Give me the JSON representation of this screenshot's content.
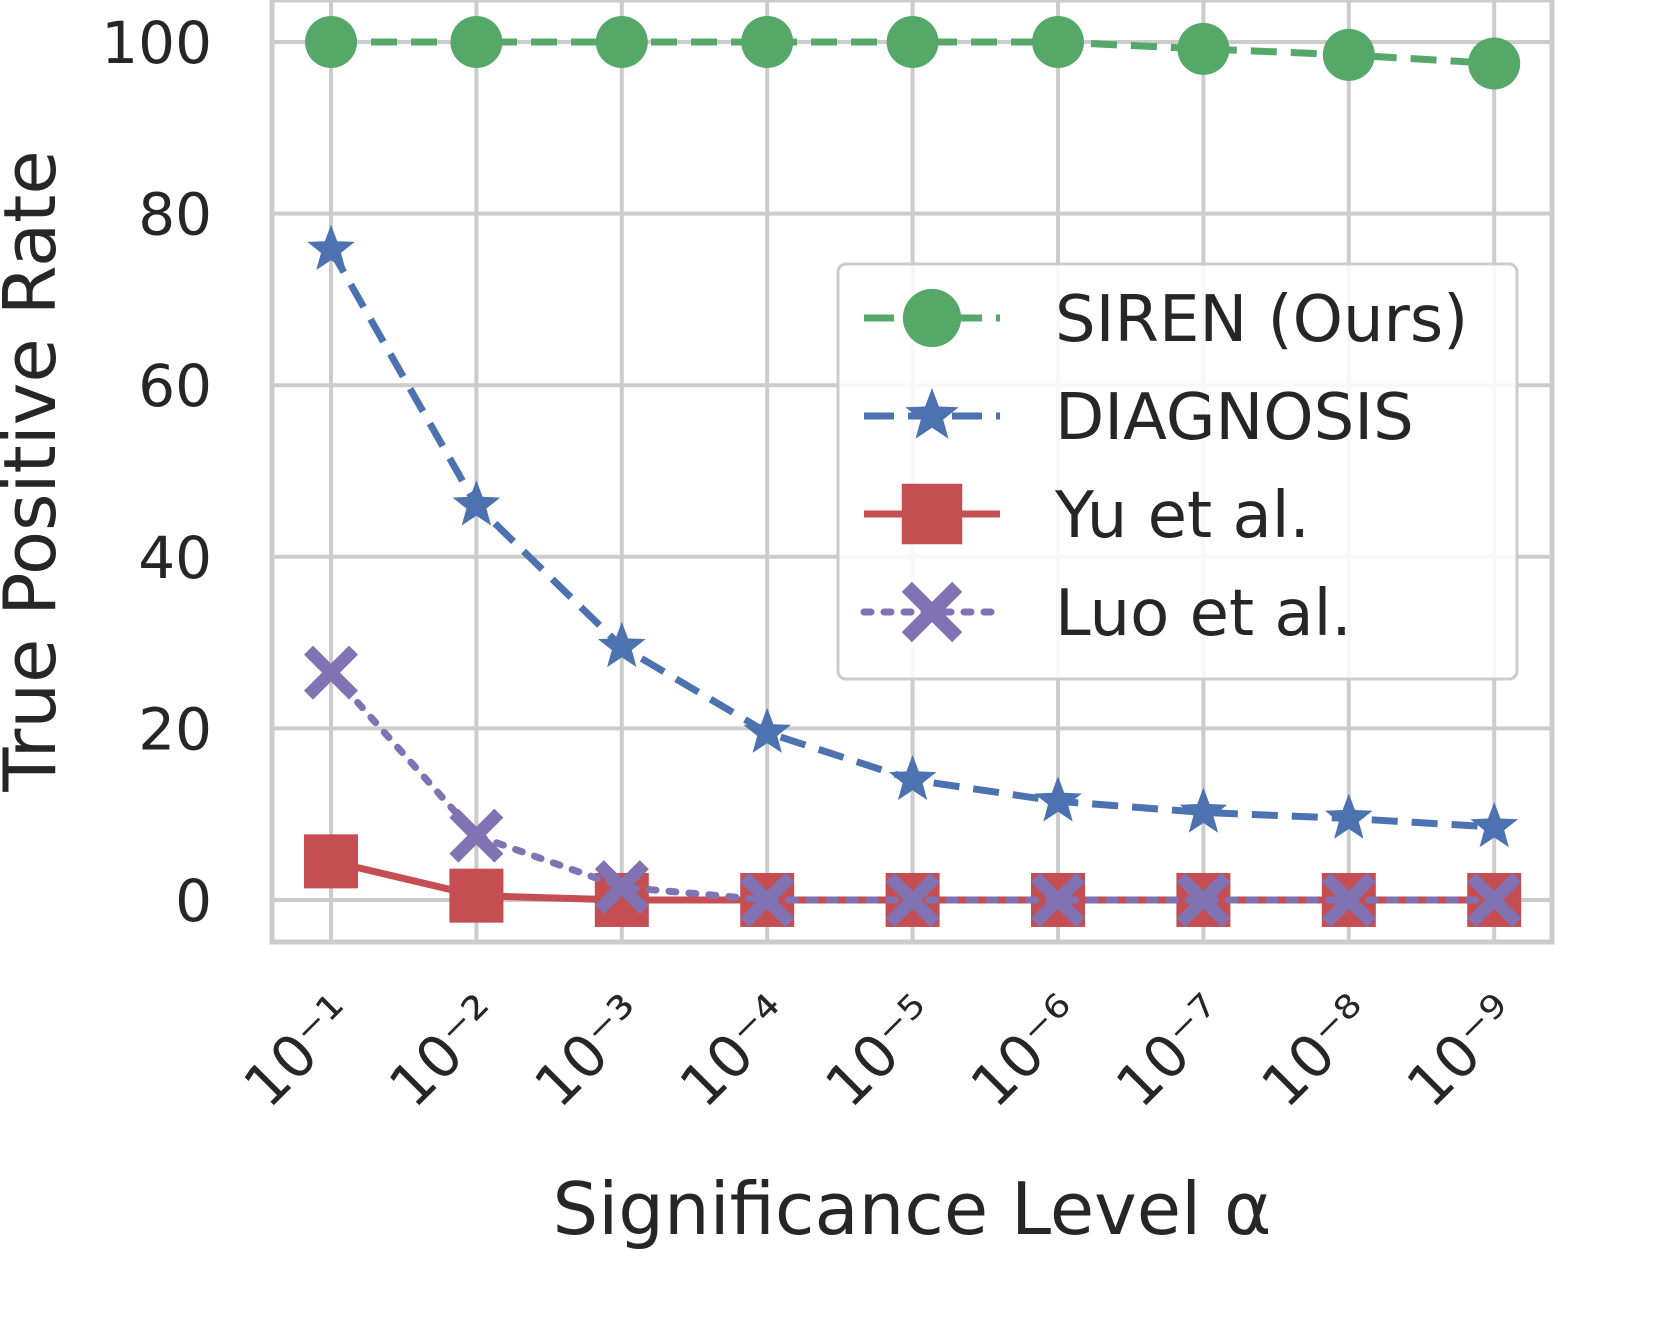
{
  "chart_data": {
    "type": "line",
    "title": "",
    "xlabel": "Significance Level α",
    "ylabel": "True Positive Rate",
    "categories": [
      "10⁻¹",
      "10⁻²",
      "10⁻³",
      "10⁻⁴",
      "10⁻⁵",
      "10⁻⁶",
      "10⁻⁷",
      "10⁻⁸",
      "10⁻⁹"
    ],
    "ylim": [
      -4.9,
      104.9
    ],
    "yticks": [
      0,
      20,
      40,
      60,
      80,
      100
    ],
    "grid": true,
    "legend_position": "center-right",
    "series": [
      {
        "name": "SIREN (Ours)",
        "color": "#55a868",
        "linestyle": "dashed",
        "marker": "circle",
        "values": [
          100,
          100,
          100,
          100,
          100,
          100,
          99.2,
          98.5,
          97.5
        ]
      },
      {
        "name": "DIAGNOSIS",
        "color": "#4c72b0",
        "linestyle": "dashed",
        "marker": "star",
        "values": [
          75.8,
          46,
          29.5,
          19.5,
          14,
          11.5,
          10.2,
          9.5,
          8.5
        ]
      },
      {
        "name": "Yu et al.",
        "color": "#c44e52",
        "linestyle": "solid",
        "marker": "square",
        "values": [
          4.5,
          0.5,
          0,
          0,
          0,
          0,
          0,
          0,
          0
        ]
      },
      {
        "name": "Luo et al.",
        "color": "#8172b3",
        "linestyle": "dotted",
        "marker": "x",
        "values": [
          26.5,
          7.5,
          1.5,
          0,
          0,
          0,
          0,
          0,
          0
        ]
      }
    ]
  }
}
